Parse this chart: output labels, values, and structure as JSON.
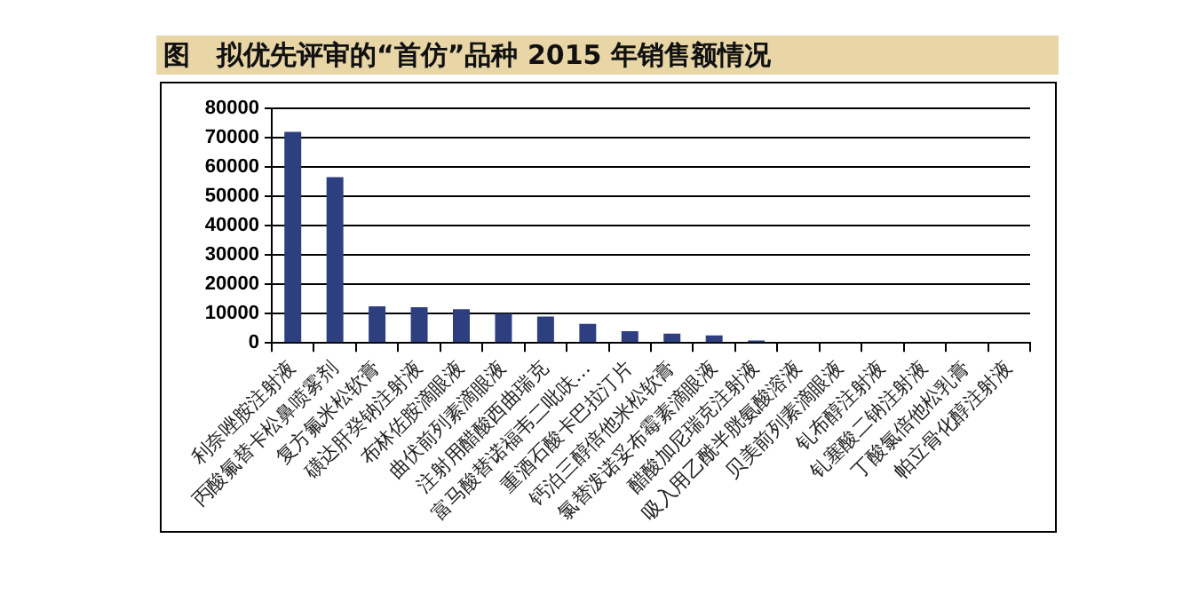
{
  "chart_data": {
    "type": "bar",
    "title": "图　拟优先评审的“首仿”品种 2015 年销售额情况",
    "categories": [
      "利奈唑胺注射液",
      "丙酸氟替卡松鼻喷雾剂",
      "复方氟米松软膏",
      "磺达肝癸钠注射液",
      "布林佐胺滴眼液",
      "曲伏前列素滴眼液",
      "注射用醋酸西曲瑞克",
      "富马酸替诺福韦二吡呋…",
      "重酒石酸卡巴拉汀片",
      "钙泊三醇倍他米松软膏",
      "氯替泼诺妥布霉素滴眼液",
      "醋酸加尼瑞克注射液",
      "吸入用乙酰半胱氨酸溶液",
      "贝美前列素滴眼液",
      "钆布醇注射液",
      "钆塞酸二钠注射液",
      "丁酸氯倍他松乳膏",
      "帕立骨化醇注射液"
    ],
    "values": [
      72000,
      56500,
      12500,
      12200,
      11500,
      10000,
      9000,
      6500,
      4000,
      3200,
      2600,
      800,
      0,
      0,
      0,
      0,
      0,
      0
    ],
    "color": "#2e3f7f",
    "ylim": [
      0,
      80000
    ],
    "yticks": [
      0,
      10000,
      20000,
      30000,
      40000,
      50000,
      60000,
      70000,
      80000
    ],
    "grid": "y",
    "legend": false
  }
}
